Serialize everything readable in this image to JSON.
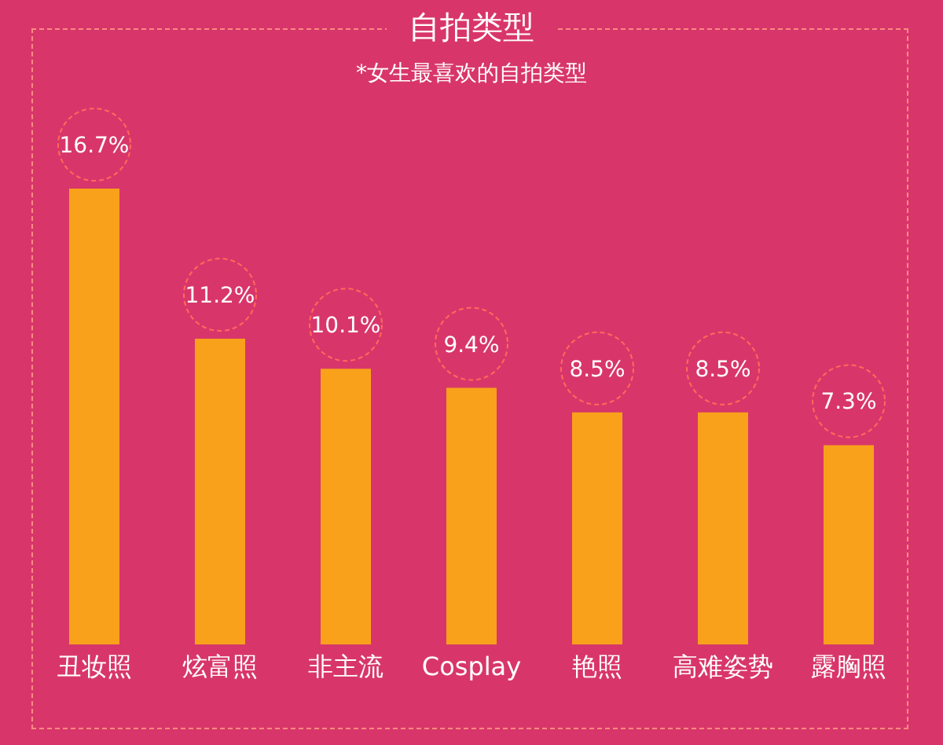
{
  "chart_data": {
    "type": "bar",
    "title": "自拍类型",
    "subtitle": "*女生最喜欢的自拍类型",
    "categories": [
      "丑妆照",
      "炫富照",
      "非主流",
      "Cosplay",
      "艳照",
      "高难姿势",
      "露胸照"
    ],
    "values": [
      16.7,
      11.2,
      10.1,
      9.4,
      8.5,
      8.5,
      7.3
    ],
    "value_labels": [
      "16.7%",
      "11.2%",
      "10.1%",
      "9.4%",
      "8.5%",
      "8.5%",
      "7.3%"
    ],
    "color": "#f9a11b"
  }
}
